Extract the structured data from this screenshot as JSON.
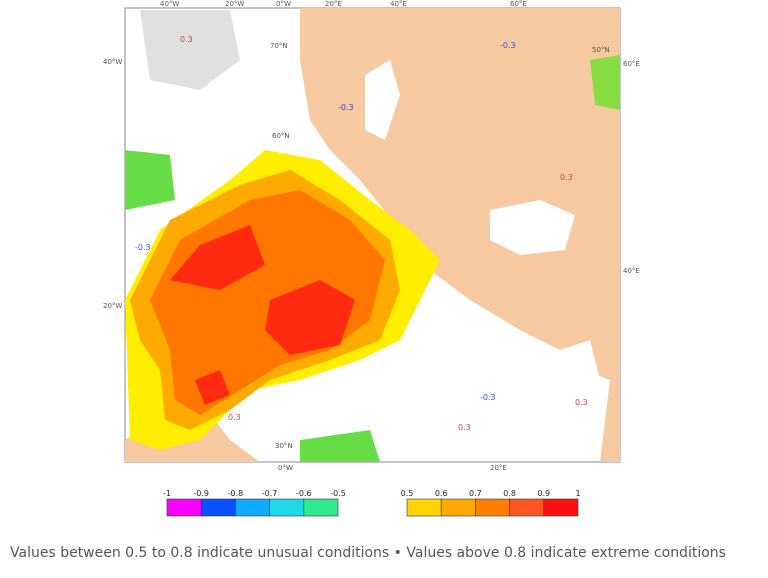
{
  "map": {
    "graticule_labels": [
      "40°W",
      "20°W",
      "0°W",
      "20°E",
      "40°E",
      "60°E",
      "70°N",
      "60°N",
      "50°N",
      "40°W",
      "20°W",
      "60°E",
      "40°E",
      "30°N",
      "0°W",
      "20°E"
    ],
    "contour_labels": [
      "0.3",
      "-0.3",
      "-0.3",
      "0.3",
      "-0.3",
      "0.3",
      "0.3",
      "-0.3",
      "0.3"
    ]
  },
  "legend": {
    "negative": {
      "labels": [
        "-1",
        "-0.9",
        "-0.8",
        "-0.7",
        "-0.6",
        "-0.5"
      ],
      "colors": [
        "#ff00ff",
        "#0a50ff",
        "#10aaff",
        "#20d8e8",
        "#30e890",
        "#99ee33"
      ]
    },
    "positive": {
      "labels": [
        "0.5",
        "0.6",
        "0.7",
        "0.8",
        "0.9",
        "1"
      ],
      "colors": [
        "#ffff00",
        "#ffd400",
        "#ffaa00",
        "#ff8000",
        "#ff5522",
        "#ff1010"
      ]
    }
  },
  "caption": "Values between 0.5 to 0.8 indicate unusual conditions • Values above 0.8 indicate extreme conditions"
}
